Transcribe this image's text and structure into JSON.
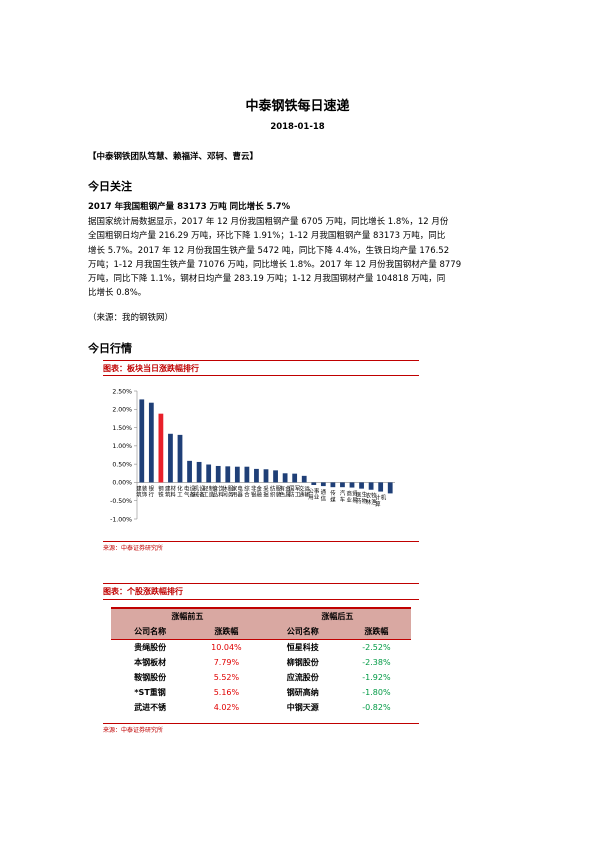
{
  "report": {
    "title": "中泰钢铁每日速递",
    "date": "2018-01-18",
    "authors": "【中泰钢铁团队笃慧、赖福洋、邓轲、曹云】"
  },
  "today_focus": {
    "section_title": "今日关注",
    "headline": "2017 年我国粗钢产量 83173 万吨  同比增长 5.7%",
    "lines": [
      "据国家统计局数据显示，2017 年 12 月份我国粗钢产量 6705 万吨，同比增长 1.8%，12 月份",
      "全国粗钢日均产量 216.29 万吨，环比下降 1.91%；1-12 月我国粗钢产量 83173 万吨，同比",
      "增长 5.7%。2017 年 12 月份我国生铁产量 5472 吨，同比下降 4.4%，生铁日均产量 176.52",
      "万吨；1-12 月我国生铁产量 71076 万吨，同比增长 1.8%。2017 年 12 月份我国钢材产量 8779",
      "万吨，同比下降 1.1%，钢材日均产量 283.19 万吨；1-12 月我国钢材产量 104818 万吨，同",
      "比增长 0.8%。"
    ],
    "source": "（来源：我的钢铁网）"
  },
  "market": {
    "section_title": "今日行情",
    "figure1_caption": "图表：板块当日涨跌幅排行",
    "figure1_source": "来源：中泰证券研究所",
    "figure2_caption": "图表：个股涨跌幅排行",
    "figure2_source": "来源：中泰证券研究所"
  },
  "chart_data": {
    "type": "bar",
    "title": "",
    "xlabel": "",
    "ylabel": "",
    "ylim": [
      -1.0,
      2.5
    ],
    "yticks": [
      -1.0,
      -0.5,
      0.0,
      0.5,
      1.0,
      1.5,
      2.0,
      2.5
    ],
    "ytick_labels": [
      "-1.00%",
      "-0.50%",
      "0.00%",
      "0.50%",
      "1.00%",
      "1.50%",
      "2.00%",
      "2.50%"
    ],
    "grid": false,
    "highlight_color": "#e8202a",
    "bar_color": "#1f3f77",
    "categories": [
      "建筑装饰",
      "银行",
      "钢铁",
      "建筑材料",
      "化工",
      "电气设备",
      "机械设备",
      "轻工制造",
      "食品饮料",
      "休闲服务",
      "家用电器",
      "综合",
      "非银金融",
      "采掘",
      "纺织服装",
      "有色金属",
      "国防军工",
      "交通运输",
      "公用事业",
      "通信",
      "传媒",
      "汽车",
      "商业贸易",
      "医药生物",
      "农林牧渔",
      "计算机",
      "电子"
    ],
    "labels": [
      "建筑装饰",
      "银行",
      "钢铁",
      "建筑材料",
      "化工",
      "电气设备",
      "机械设备",
      "轻工制造",
      "食品饮料",
      "休闲服务",
      "家用电器",
      "综合",
      "非银金融",
      "采掘",
      "纺织服装",
      "有色金属",
      "国防军工",
      "交通运输",
      "公用事业",
      "通信",
      "传媒",
      "汽车",
      "商业贸易",
      "医药生物",
      "农林牧渔",
      "计算机",
      ""
    ],
    "values": [
      2.27,
      2.18,
      1.88,
      1.33,
      1.3,
      0.59,
      0.56,
      0.49,
      0.45,
      0.44,
      0.43,
      0.43,
      0.37,
      0.36,
      0.33,
      0.25,
      0.24,
      0.18,
      -0.07,
      -0.1,
      -0.13,
      -0.13,
      -0.14,
      -0.17,
      -0.2,
      -0.25,
      -0.3
    ],
    "highlight_index": 2
  },
  "stock_table": {
    "top_header": "涨幅前五",
    "bottom_header": "涨幅后五",
    "col_company": "公司名称",
    "col_change": "涨跌幅",
    "top_five": [
      {
        "name": "贵绳股份",
        "change": "10.04%"
      },
      {
        "name": "本钢板材",
        "change": "7.79%"
      },
      {
        "name": "鞍钢股份",
        "change": "5.52%"
      },
      {
        "name": "*ST重钢",
        "change": "5.16%"
      },
      {
        "name": "武进不锈",
        "change": "4.02%"
      }
    ],
    "bottom_five": [
      {
        "name": "恒星科技",
        "change": "-2.52%"
      },
      {
        "name": "柳钢股份",
        "change": "-2.38%"
      },
      {
        "name": "应流股份",
        "change": "-1.92%"
      },
      {
        "name": "钢研高纳",
        "change": "-1.80%"
      },
      {
        "name": "中钢天源",
        "change": "-0.82%"
      }
    ]
  }
}
